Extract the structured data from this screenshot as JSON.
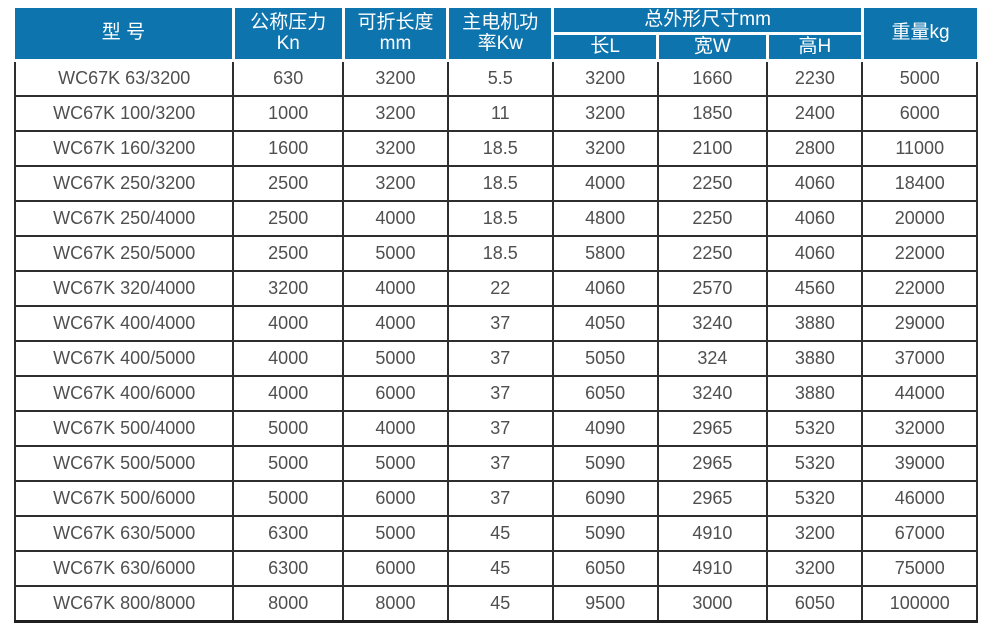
{
  "colors": {
    "header_bg": "#0e74ae",
    "header_text": "#ffffff",
    "cell_text": "#4f4f4f",
    "border": "#2e2e2e"
  },
  "table": {
    "header": {
      "model": "型 号",
      "pressure_line1": "公称压力",
      "pressure_line2": "Kn",
      "fold_length_line1": "可折长度",
      "fold_length_line2": "mm",
      "motor_power_line1": "主电机功",
      "motor_power_line2": "率Kw",
      "dimensions_group": "总外形尺寸mm",
      "dim_length": "长L",
      "dim_width": "宽W",
      "dim_height": "高H",
      "weight": "重量kg"
    },
    "rows": [
      [
        "WC67K 63/3200",
        "630",
        "3200",
        "5.5",
        "3200",
        "1660",
        "2230",
        "5000"
      ],
      [
        "WC67K 100/3200",
        "1000",
        "3200",
        "11",
        "3200",
        "1850",
        "2400",
        "6000"
      ],
      [
        "WC67K 160/3200",
        "1600",
        "3200",
        "18.5",
        "3200",
        "2100",
        "2800",
        "11000"
      ],
      [
        "WC67K 250/3200",
        "2500",
        "3200",
        "18.5",
        "4000",
        "2250",
        "4060",
        "18400"
      ],
      [
        "WC67K 250/4000",
        "2500",
        "4000",
        "18.5",
        "4800",
        "2250",
        "4060",
        "20000"
      ],
      [
        "WC67K 250/5000",
        "2500",
        "5000",
        "18.5",
        "5800",
        "2250",
        "4060",
        "22000"
      ],
      [
        "WC67K 320/4000",
        "3200",
        "4000",
        "22",
        "4060",
        "2570",
        "4560",
        "22000"
      ],
      [
        "WC67K 400/4000",
        "4000",
        "4000",
        "37",
        "4050",
        "3240",
        "3880",
        "29000"
      ],
      [
        "WC67K 400/5000",
        "4000",
        "5000",
        "37",
        "5050",
        "324",
        "3880",
        "37000"
      ],
      [
        "WC67K 400/6000",
        "4000",
        "6000",
        "37",
        "6050",
        "3240",
        "3880",
        "44000"
      ],
      [
        "WC67K 500/4000",
        "5000",
        "4000",
        "37",
        "4090",
        "2965",
        "5320",
        "32000"
      ],
      [
        "WC67K 500/5000",
        "5000",
        "5000",
        "37",
        "5090",
        "2965",
        "5320",
        "39000"
      ],
      [
        "WC67K 500/6000",
        "5000",
        "6000",
        "37",
        "6090",
        "2965",
        "5320",
        "46000"
      ],
      [
        "WC67K 630/5000",
        "6300",
        "5000",
        "45",
        "5090",
        "4910",
        "3200",
        "67000"
      ],
      [
        "WC67K 630/6000",
        "6300",
        "6000",
        "45",
        "6050",
        "4910",
        "3200",
        "75000"
      ],
      [
        "WC67K 800/8000",
        "8000",
        "8000",
        "45",
        "9500",
        "3000",
        "6050",
        "100000"
      ]
    ]
  }
}
